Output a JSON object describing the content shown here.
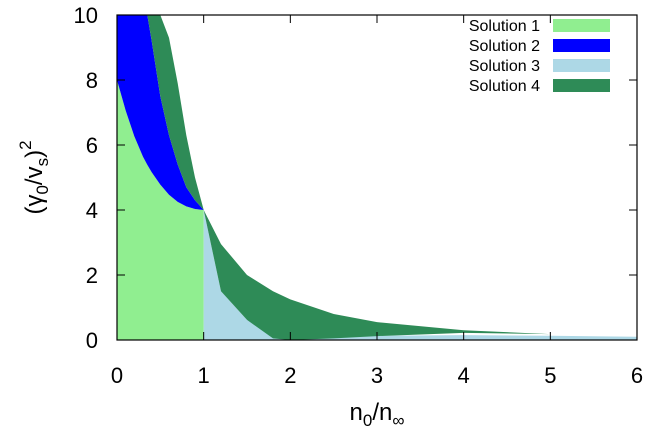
{
  "chart_data": {
    "type": "area",
    "title": "",
    "xlabel": {
      "base": "n",
      "sub1": "0",
      "slash": "/",
      "base2": "n",
      "sub2": "∞"
    },
    "ylabel": {
      "open": "(",
      "gamma": "γ",
      "sub_gamma": "0",
      "slash": "/v",
      "sub_v": "s",
      "close": ")",
      "power": "2"
    },
    "xlim": [
      0,
      6
    ],
    "ylim": [
      0,
      10
    ],
    "x_ticks": [
      "0",
      "1",
      "2",
      "3",
      "4",
      "5",
      "6"
    ],
    "y_ticks": [
      "0",
      "2",
      "4",
      "6",
      "8",
      "10"
    ],
    "grid": false,
    "legend_position": "top-right",
    "colors": {
      "Solution 1": "#90ee90",
      "Solution 2": "#0000ff",
      "Solution 3": "#add8e6",
      "Solution 4": "#2e8b57"
    },
    "series": [
      {
        "name": "Solution 1",
        "region": "from y=0 up to curve (2-sqrt(x))^2/(x^2) scaled; n0/ninf in [0,1]",
        "x": [
          0,
          0.1,
          0.2,
          0.3,
          0.4,
          0.5,
          0.6,
          0.7,
          0.8,
          0.9,
          1.0
        ],
        "upper": [
          8.0,
          7.06,
          6.27,
          5.64,
          5.16,
          4.78,
          4.47,
          4.25,
          4.11,
          4.03,
          4.0
        ],
        "lower": [
          0,
          0,
          0,
          0,
          0,
          0,
          0,
          0,
          0,
          0,
          0
        ]
      },
      {
        "name": "Solution 2",
        "x": [
          0,
          0.1,
          0.2,
          0.3,
          0.35,
          0.4,
          0.5,
          0.6,
          0.7,
          0.8,
          0.9,
          1.0
        ],
        "upper": [
          10,
          10,
          10,
          10,
          10,
          9.2,
          7.5,
          6.3,
          5.4,
          4.7,
          4.3,
          4.0
        ],
        "lower": [
          8.0,
          7.06,
          6.27,
          5.64,
          5.39,
          5.16,
          4.78,
          4.47,
          4.25,
          4.11,
          4.03,
          4.0
        ]
      },
      {
        "name": "Solution 3",
        "x": [
          1.0,
          1.2,
          1.5,
          2.0,
          2.5,
          3.0,
          4.0,
          5.0,
          6.0
        ],
        "upper": [
          4.0,
          1.5,
          0.62,
          0.18,
          0.12,
          0.13,
          0.15,
          0.13,
          0.1
        ],
        "lower": [
          0,
          0,
          0,
          0,
          0,
          0,
          0,
          0,
          0
        ]
      },
      {
        "name": "Solution 4",
        "x": [
          0.35,
          0.4,
          0.5,
          0.6,
          0.7,
          0.8,
          0.9,
          1.0,
          1.2,
          1.5,
          1.8,
          2.0,
          2.5,
          3.0,
          4.0,
          5.0,
          6.0
        ],
        "upper": [
          10,
          10,
          10,
          9.3,
          7.9,
          6.3,
          5.0,
          4.0,
          2.95,
          2.0,
          1.5,
          1.25,
          0.8,
          0.55,
          0.3,
          0.18,
          0.12
        ],
        "lower": [
          10,
          9.2,
          7.5,
          6.3,
          5.4,
          4.7,
          4.3,
          4.0,
          1.5,
          0.62,
          0.05,
          0.0,
          0.05,
          0.12,
          0.22,
          0.18,
          0.12
        ]
      }
    ]
  }
}
